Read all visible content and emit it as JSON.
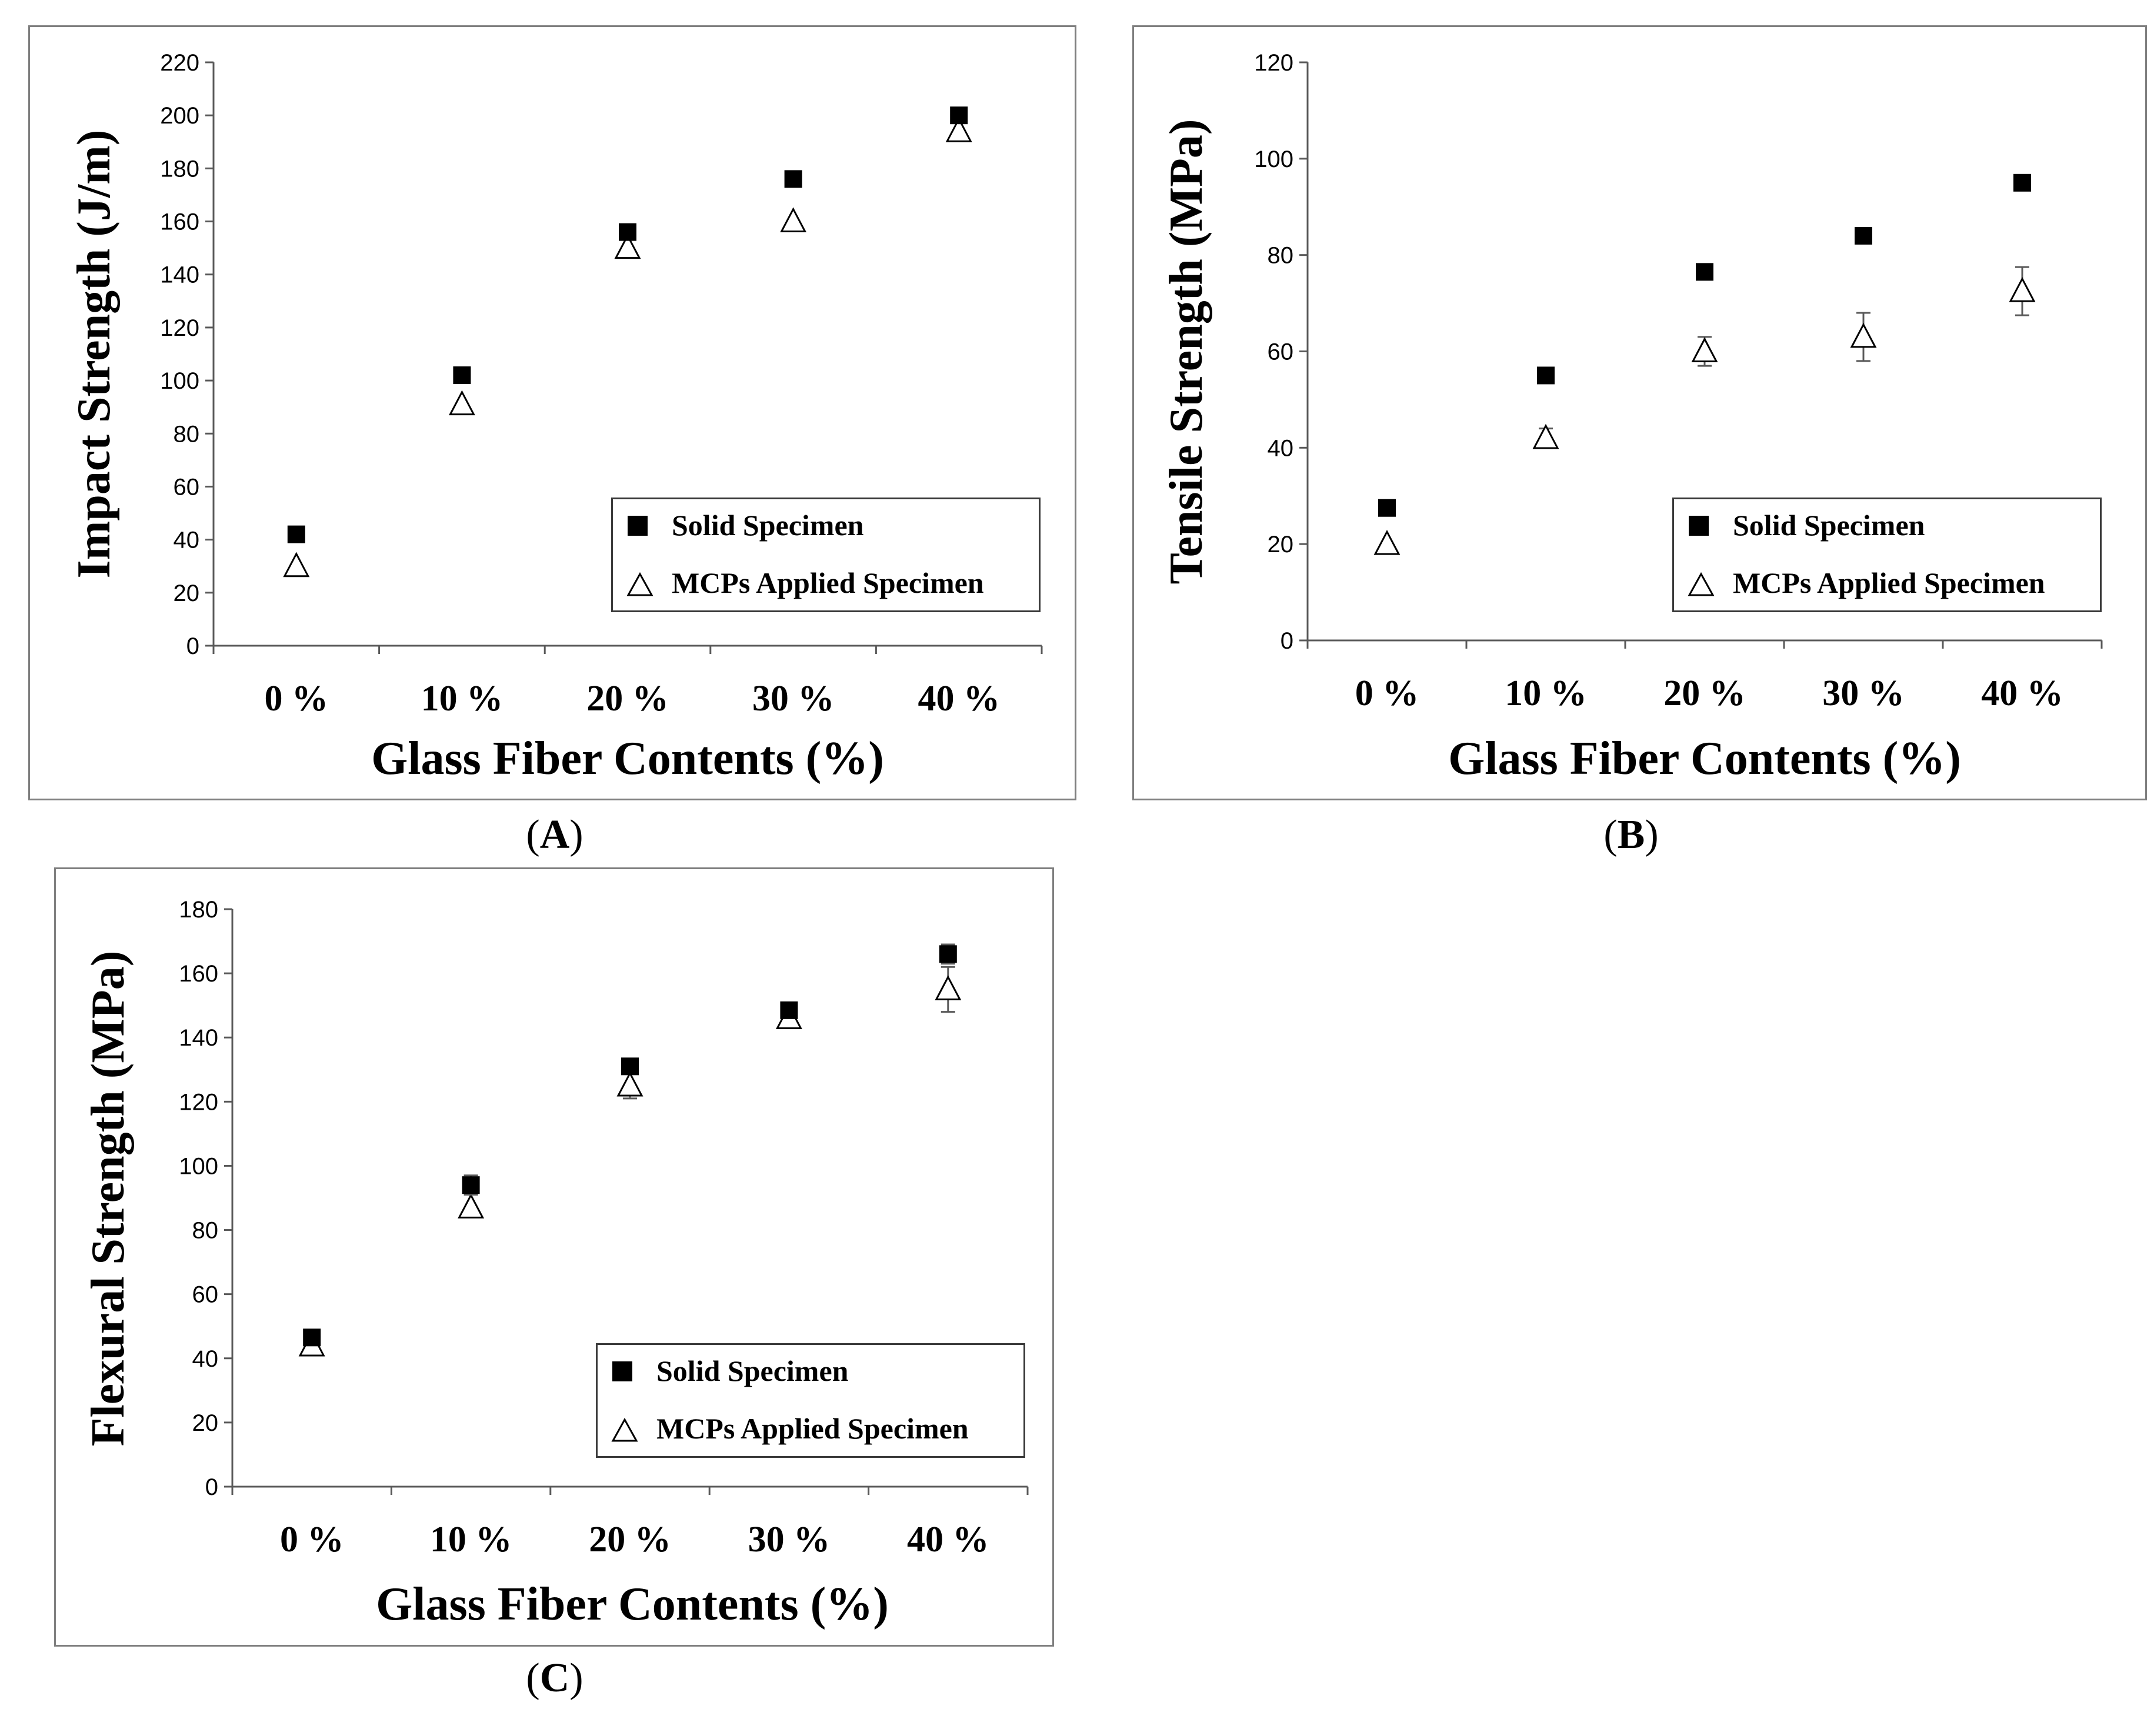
{
  "colors": {
    "solid": "#000000",
    "mcp_fill": "#ffffff",
    "mcp_stroke": "#000000",
    "axis": "#595959",
    "error_bar": "#595959"
  },
  "legend_labels": {
    "solid": "Solid Specimen",
    "mcp": "MCPs Applied Specimen"
  },
  "chart_data": [
    {
      "id": "A",
      "type": "scatter",
      "caption_open": "(",
      "caption_letter": "A",
      "caption_close": ")",
      "categories": [
        "0 %",
        "10 %",
        "20 %",
        "30 %",
        "40 %"
      ],
      "xlabel": "Glass Fiber Contents (%)",
      "ylabel": "Impact Strength (J/m)",
      "ylim": [
        0,
        220
      ],
      "ytick_step": 20,
      "legend_position": "bottom-right",
      "series": [
        {
          "name": "Solid Specimen",
          "marker": "filled-square",
          "values": [
            42,
            102,
            156,
            176,
            200
          ],
          "errors": [
            0,
            0,
            0,
            0,
            0
          ]
        },
        {
          "name": "MCPs Applied Specimen",
          "marker": "open-triangle",
          "values": [
            30,
            91,
            150,
            160,
            194
          ],
          "errors": [
            0,
            0,
            0,
            0,
            0
          ]
        }
      ]
    },
    {
      "id": "B",
      "type": "scatter",
      "caption_open": "(",
      "caption_letter": "B",
      "caption_close": ")",
      "categories": [
        "0 %",
        "10 %",
        "20 %",
        "30 %",
        "40 %"
      ],
      "xlabel": "Glass Fiber Contents (%)",
      "ylabel": "Tensile Strength (MPa)",
      "ylim": [
        0,
        120
      ],
      "ytick_step": 20,
      "legend_position": "bottom-right",
      "series": [
        {
          "name": "Solid Specimen",
          "marker": "filled-square",
          "values": [
            27.5,
            55,
            76.5,
            84,
            95
          ],
          "errors": [
            0,
            0,
            0,
            0,
            0
          ]
        },
        {
          "name": "MCPs Applied Specimen",
          "marker": "open-triangle",
          "values": [
            20,
            42,
            60,
            63,
            72.5
          ],
          "errors": [
            0,
            2,
            3,
            5,
            5
          ]
        }
      ]
    },
    {
      "id": "C",
      "type": "scatter",
      "caption_open": "(",
      "caption_letter": "C",
      "caption_close": ")",
      "categories": [
        "0 %",
        "10 %",
        "20 %",
        "30 %",
        "40 %"
      ],
      "xlabel": "Glass Fiber Contents (%)",
      "ylabel": "Flexural Strength (MPa)",
      "ylim": [
        0,
        180
      ],
      "ytick_step": 20,
      "legend_position": "bottom-right",
      "series": [
        {
          "name": "Solid Specimen",
          "marker": "filled-square",
          "values": [
            46.5,
            94,
            131,
            148.5,
            166
          ],
          "errors": [
            0,
            3,
            0,
            0,
            3
          ]
        },
        {
          "name": "MCPs Applied Specimen",
          "marker": "open-triangle",
          "values": [
            44,
            87,
            125,
            146,
            155
          ],
          "errors": [
            0,
            0,
            4,
            0,
            7
          ]
        }
      ]
    }
  ]
}
